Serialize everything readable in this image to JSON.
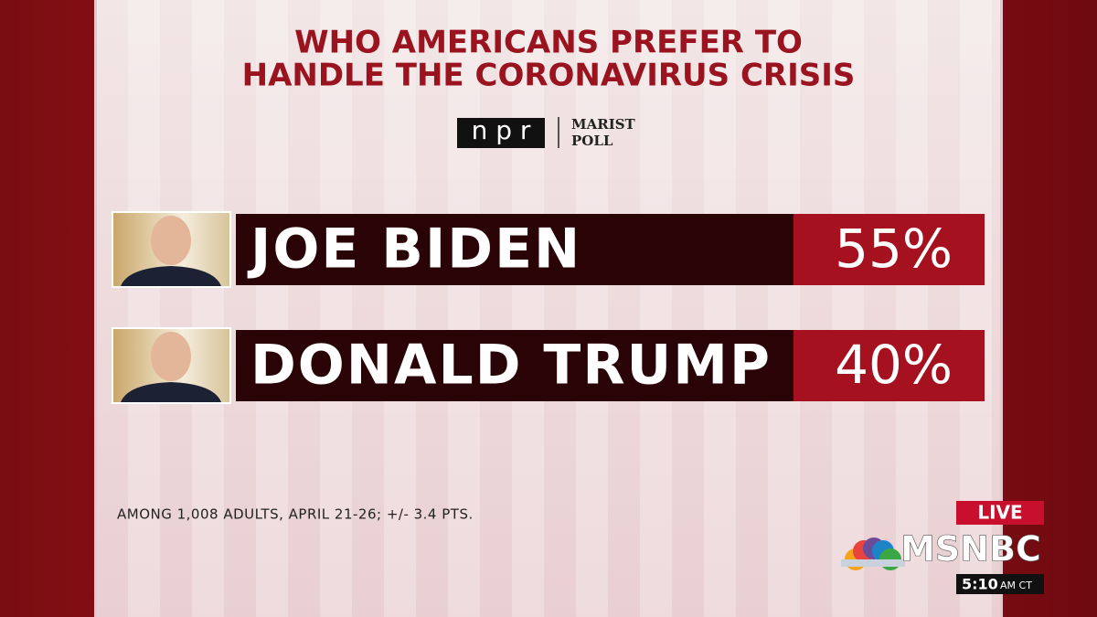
{
  "header": {
    "title_lines": [
      "WHO AMERICANS PREFER TO",
      "HANDLE THE CORONAVIRUS CRISIS"
    ],
    "logos": {
      "npr": "n p r",
      "marist": "MARIST",
      "poll": "POLL"
    }
  },
  "rows": [
    {
      "name": "JOE BIDEN",
      "value": "55%"
    },
    {
      "name": "DONALD TRUMP",
      "value": "40%"
    }
  ],
  "footnote": "AMONG 1,008 ADULTS, APRIL 21-26; +/- 3.4 PTS.",
  "bug": {
    "live": "LIVE",
    "network": "MSNBC",
    "time": "5:10",
    "zone": "AM CT"
  }
}
